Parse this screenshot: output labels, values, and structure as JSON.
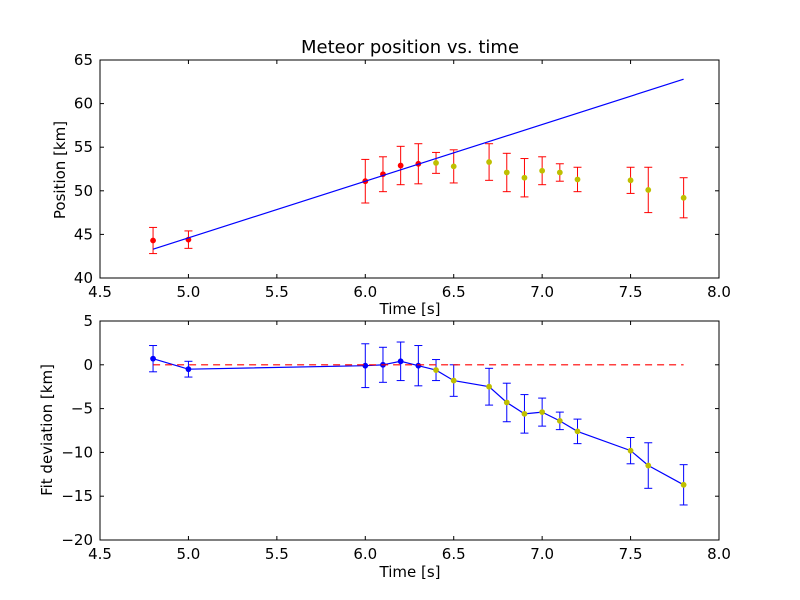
{
  "chart_data": [
    {
      "type": "scatter",
      "title": "Meteor position vs. time",
      "xlabel": "Time [s]",
      "ylabel": "Position [km]",
      "xlim": [
        4.5,
        8.0
      ],
      "ylim": [
        40,
        65
      ],
      "xticks": [
        "4.5",
        "5.0",
        "5.5",
        "6.0",
        "6.5",
        "7.0",
        "7.5",
        "8.0"
      ],
      "yticks": [
        "40",
        "45",
        "50",
        "55",
        "60",
        "65"
      ],
      "grid": false,
      "series": [
        {
          "marker": "points-with-errorbars",
          "color_points_early": "#ff0000",
          "color_points_late": "#bfbf00",
          "color_errorbars": "#ff0000",
          "x": [
            4.8,
            5.0,
            6.0,
            6.1,
            6.2,
            6.3,
            6.4,
            6.5,
            6.7,
            6.8,
            6.9,
            7.0,
            7.1,
            7.2,
            7.5,
            7.6,
            7.8
          ],
          "y": [
            44.3,
            44.4,
            51.1,
            51.9,
            52.9,
            53.1,
            53.2,
            52.8,
            53.3,
            52.1,
            51.5,
            52.3,
            52.1,
            51.3,
            51.2,
            50.1,
            49.2
          ],
          "yerr": [
            1.5,
            1.0,
            2.5,
            2.0,
            2.2,
            2.3,
            1.2,
            1.9,
            2.1,
            2.2,
            2.2,
            1.6,
            1.0,
            1.4,
            1.5,
            2.6,
            2.3
          ]
        },
        {
          "marker": "line",
          "color": "#0000ff",
          "x": [
            4.8,
            7.8
          ],
          "y": [
            43.3,
            62.8
          ]
        }
      ]
    },
    {
      "type": "line",
      "title": "",
      "xlabel": "Time [s]",
      "ylabel": "Fit deviation [km]",
      "xlim": [
        4.5,
        8.0
      ],
      "ylim": [
        -20,
        5
      ],
      "xticks": [
        "4.5",
        "5.0",
        "5.5",
        "6.0",
        "6.5",
        "7.0",
        "7.5",
        "8.0"
      ],
      "yticks": [
        "−20",
        "−15",
        "−10",
        "−5",
        "0",
        "5"
      ],
      "grid": false,
      "series": [
        {
          "marker": "line-with-points-and-errorbars",
          "color": "#0000ff",
          "color_points_late": "#bfbf00",
          "x": [
            4.8,
            5.0,
            6.0,
            6.1,
            6.2,
            6.3,
            6.4,
            6.5,
            6.7,
            6.8,
            6.9,
            7.0,
            7.1,
            7.2,
            7.5,
            7.6,
            7.8
          ],
          "y": [
            0.7,
            -0.5,
            -0.1,
            0.0,
            0.4,
            -0.1,
            -0.6,
            -1.8,
            -2.5,
            -4.3,
            -5.6,
            -5.4,
            -6.4,
            -7.6,
            -9.8,
            -11.5,
            -13.7
          ],
          "yerr": [
            1.5,
            0.9,
            2.5,
            2.0,
            2.2,
            2.3,
            1.2,
            1.8,
            2.1,
            2.2,
            2.2,
            1.6,
            1.0,
            1.4,
            1.5,
            2.6,
            2.3
          ]
        },
        {
          "marker": "dashed-line",
          "color": "#ff0000",
          "x": [
            4.8,
            7.8
          ],
          "y": [
            0,
            0
          ]
        }
      ]
    }
  ]
}
